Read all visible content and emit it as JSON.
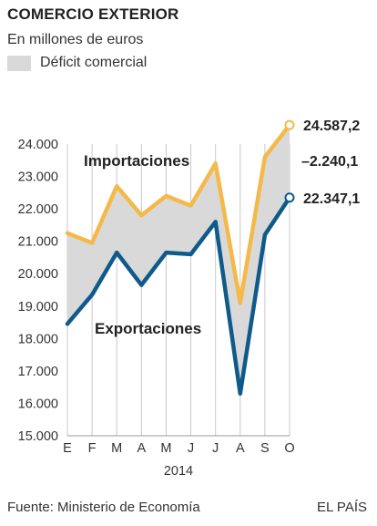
{
  "header": {
    "title": "COMERCIO EXTERIOR",
    "subtitle": "En millones de euros"
  },
  "legend": {
    "label": "Déficit comercial",
    "color": "#d9d9d9"
  },
  "footer": {
    "source": "Fuente: Ministerio de Economía",
    "brand": "EL PAÍS"
  },
  "chart_data": {
    "type": "line",
    "categories": [
      "E",
      "F",
      "M",
      "A",
      "M",
      "J",
      "J",
      "A",
      "S",
      "O"
    ],
    "xlabel": "2014",
    "ylabel": "",
    "ylim": [
      15000,
      24000
    ],
    "ytick_labels": [
      "15.000",
      "16.000",
      "17.000",
      "18.000",
      "19.000",
      "20.000",
      "21.000",
      "22.000",
      "23.000",
      "24.000"
    ],
    "grid": "vertical",
    "series": [
      {
        "name": "Importaciones",
        "color": "#f5b949",
        "values": [
          21250,
          20950,
          22700,
          21800,
          22400,
          22100,
          23400,
          19100,
          23600,
          24587.2
        ]
      },
      {
        "name": "Exportaciones",
        "color": "#0e5a8a",
        "values": [
          18450,
          19350,
          20650,
          19650,
          20650,
          20600,
          21600,
          16300,
          21200,
          22347.1
        ]
      }
    ],
    "annotations": {
      "import_last_label": "24.587,2",
      "deficit_last_label": "–2.240,1",
      "export_last_label": "22.347,1"
    }
  }
}
